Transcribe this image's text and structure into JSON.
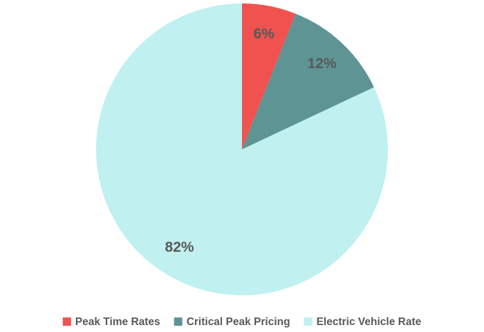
{
  "chart_data": {
    "type": "pie",
    "categories": [
      "Peak Time Rates",
      "Critical Peak Pricing",
      "Electric Vehicle Rate"
    ],
    "values": [
      6,
      12,
      82
    ],
    "value_labels": [
      "6%",
      "12%",
      "82%"
    ],
    "colors": [
      "#f0524f",
      "#5f9494",
      "#c0f0f0"
    ],
    "legend": "bottom"
  }
}
